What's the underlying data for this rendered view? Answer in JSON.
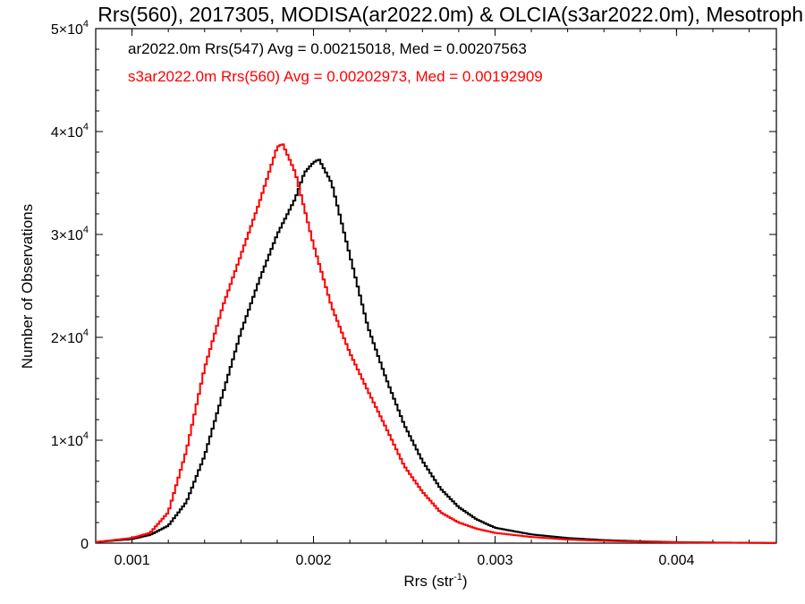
{
  "chart_data": {
    "type": "line",
    "title": "Rrs(560), 2017305, MODISA(ar2022.0m) & OLCIA(s3ar2022.0m), Mesotroph",
    "xlabel_main": "Rrs (str",
    "xlabel_sup": "-1",
    "xlabel_close": ")",
    "ylabel": "Number of Observations",
    "xlim": [
      0.0008,
      0.00455
    ],
    "ylim": [
      0,
      50000
    ],
    "x_ticks": [
      {
        "value": 0.001,
        "label": "0.001"
      },
      {
        "value": 0.002,
        "label": "0.002"
      },
      {
        "value": 0.003,
        "label": "0.003"
      },
      {
        "value": 0.004,
        "label": "0.004"
      }
    ],
    "y_ticks": [
      {
        "value": 0,
        "mant": "0",
        "exp": ""
      },
      {
        "value": 10000,
        "mant": "1×10",
        "exp": "4"
      },
      {
        "value": 20000,
        "mant": "2×10",
        "exp": "4"
      },
      {
        "value": 30000,
        "mant": "3×10",
        "exp": "4"
      },
      {
        "value": 40000,
        "mant": "4×10",
        "exp": "4"
      },
      {
        "value": 50000,
        "mant": "5×10",
        "exp": "4"
      }
    ],
    "legend_placement": "top-left",
    "series": [
      {
        "name": "ar2022.0m Rrs(547) Avg = 0.00215018, Med = 0.00207563",
        "color": "#000000",
        "x": [
          0.0008,
          0.001,
          0.0011,
          0.0012,
          0.0013,
          0.0014,
          0.0015,
          0.0016,
          0.0017,
          0.0018,
          0.0019,
          0.00195,
          0.002,
          0.00203,
          0.0021,
          0.0022,
          0.0023,
          0.0024,
          0.0025,
          0.0026,
          0.0027,
          0.0028,
          0.0029,
          0.003,
          0.0032,
          0.0034,
          0.0036,
          0.0038,
          0.004,
          0.0042,
          0.00455
        ],
        "y": [
          100,
          400,
          800,
          1700,
          4000,
          8500,
          14500,
          20500,
          25500,
          30000,
          33500,
          36000,
          37000,
          37300,
          35000,
          28000,
          21000,
          16000,
          11500,
          8000,
          5300,
          3500,
          2300,
          1500,
          850,
          500,
          300,
          180,
          100,
          60,
          20
        ]
      },
      {
        "name": "s3ar2022.0m Rrs(560) Avg = 0.00202973, Med = 0.00192909",
        "color": "#ff0000",
        "x": [
          0.0008,
          0.001,
          0.0011,
          0.0012,
          0.0013,
          0.0014,
          0.0015,
          0.0016,
          0.0017,
          0.0018,
          0.00183,
          0.0019,
          0.002,
          0.0021,
          0.0022,
          0.0023,
          0.0024,
          0.0025,
          0.0026,
          0.0027,
          0.0028,
          0.0029,
          0.003,
          0.0032,
          0.0034,
          0.0036,
          0.0038,
          0.004,
          0.0042,
          0.00455
        ],
        "y": [
          100,
          500,
          1000,
          3000,
          9000,
          17000,
          23000,
          28000,
          33000,
          38500,
          38800,
          36000,
          29000,
          23000,
          18500,
          14800,
          11200,
          7500,
          5000,
          3000,
          2000,
          1400,
          1000,
          600,
          350,
          220,
          140,
          80,
          50,
          20
        ]
      }
    ]
  }
}
